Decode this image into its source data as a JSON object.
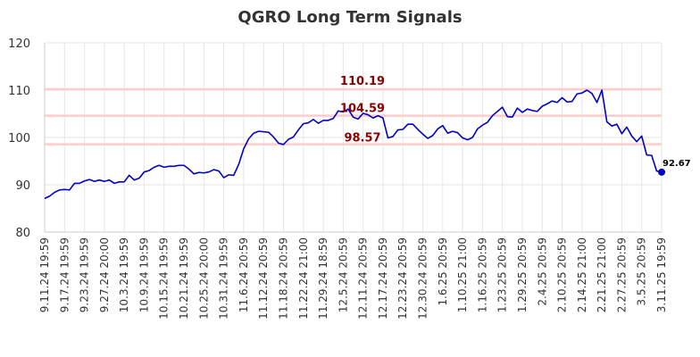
{
  "chart_data": {
    "type": "line",
    "title": "QGRO Long Term Signals",
    "xlabel": "",
    "ylabel": "",
    "ylim": [
      80,
      120
    ],
    "yticks": [
      80,
      90,
      100,
      110,
      120
    ],
    "grid": true,
    "x_tick_labels": [
      "9.11.24 19:59",
      "9.17.24 19:59",
      "9.23.24 19:59",
      "9.27.24 20:00",
      "10.3.24 19:59",
      "10.9.24 19:59",
      "10.15.24 19:59",
      "10.21.24 19:59",
      "10.25.24 20:00",
      "10.31.24 19:59",
      "11.6.24 20:59",
      "11.12.24 20:59",
      "11.18.24 20:59",
      "11.22.24 21:00",
      "11.29.24 18:59",
      "12.5.24 20:59",
      "12.11.24 20:59",
      "12.17.24 20:59",
      "12.23.24 20:59",
      "12.30.24 20:59",
      "1.6.25 20:59",
      "1.10.25 21:00",
      "1.16.25 20:59",
      "1.23.25 20:59",
      "1.29.25 20:59",
      "2.4.25 20:59",
      "2.10.25 20:59",
      "2.14.25 21:00",
      "2.21.25 21:00",
      "2.27.25 20:59",
      "3.5.25 20:59",
      "3.11.25 19:59"
    ],
    "series": [
      {
        "color": "#0000cc",
        "values": [
          87.1,
          87.6,
          88.4,
          88.9,
          89.0,
          88.9,
          90.3,
          90.3,
          90.8,
          91.1,
          90.7,
          91.0,
          90.7,
          91.0,
          90.3,
          90.6,
          90.6,
          92.0,
          91.0,
          91.4,
          92.7,
          93.0,
          93.7,
          94.1,
          93.7,
          93.9,
          93.9,
          94.1,
          94.1,
          93.3,
          92.3,
          92.6,
          92.5,
          92.7,
          93.2,
          92.9,
          91.5,
          92.1,
          92.0,
          94.3,
          97.6,
          99.7,
          100.9,
          101.3,
          101.2,
          101.1,
          100.1,
          98.8,
          98.5,
          99.6,
          100.1,
          101.6,
          102.9,
          103.1,
          103.8,
          103.0,
          103.6,
          103.6,
          104.0,
          105.6,
          105.4,
          106.0,
          104.3,
          103.9,
          105.1,
          104.8,
          104.1,
          104.6,
          104.1,
          99.9,
          100.2,
          101.6,
          101.7,
          102.8,
          102.8,
          101.7,
          100.7,
          99.8,
          100.4,
          101.8,
          102.5,
          100.9,
          101.3,
          101.0,
          99.9,
          99.5,
          100.0,
          101.8,
          102.6,
          103.2,
          104.6,
          105.5,
          106.4,
          104.4,
          104.3,
          106.2,
          105.3,
          106.0,
          105.7,
          105.5,
          106.6,
          107.1,
          107.7,
          107.4,
          108.4,
          107.5,
          107.6,
          109.2,
          109.4,
          110.0,
          109.3,
          107.4,
          110.0,
          103.3,
          102.4,
          102.8,
          100.8,
          102.2,
          100.3,
          99.1,
          100.3,
          96.3,
          96.2,
          92.9,
          92.67
        ]
      }
    ],
    "horizontal_lines": [
      {
        "value": 110.19,
        "label": "110.19",
        "color": "#ffcccc",
        "label_color": "#8b0000"
      },
      {
        "value": 104.59,
        "label": "104.59",
        "color": "#ffcccc",
        "label_color": "#8b0000"
      },
      {
        "value": 98.57,
        "label": "98.57",
        "color": "#ffcccc",
        "label_color": "#8b0000"
      }
    ],
    "last_value_label": "92.67"
  }
}
